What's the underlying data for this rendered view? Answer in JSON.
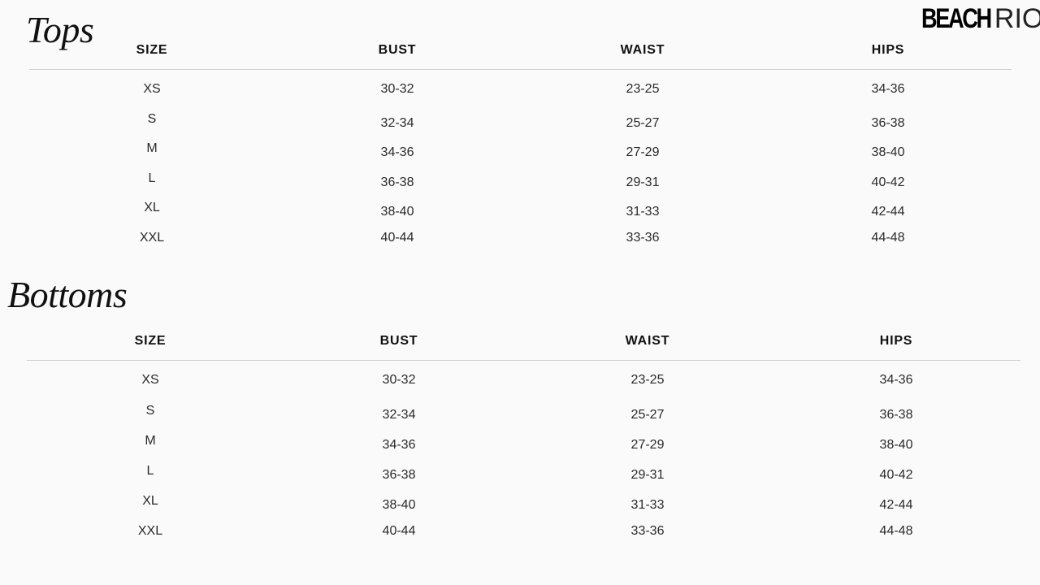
{
  "brand": {
    "logo_bold": "BEACH",
    "logo_light": "RIOT"
  },
  "tops": {
    "title": "Tops",
    "headers": [
      "SIZE",
      "BUST",
      "WAIST",
      "HIPS"
    ],
    "rows": [
      [
        "XS",
        "30-32",
        "23-25",
        "34-36"
      ],
      [
        "S",
        "32-34",
        "25-27",
        "36-38"
      ],
      [
        "M",
        "34-36",
        "27-29",
        "38-40"
      ],
      [
        "L",
        "36-38",
        "29-31",
        "40-42"
      ],
      [
        "XL",
        "38-40",
        "31-33",
        "42-44"
      ],
      [
        "XXL",
        "40-44",
        "33-36",
        "44-48"
      ]
    ]
  },
  "bottoms": {
    "title": "Bottoms",
    "headers": [
      "SIZE",
      "BUST",
      "WAIST",
      "HIPS"
    ],
    "rows": [
      [
        "XS",
        "30-32",
        "23-25",
        "34-36"
      ],
      [
        "S",
        "32-34",
        "25-27",
        "36-38"
      ],
      [
        "M",
        "34-36",
        "27-29",
        "38-40"
      ],
      [
        "L",
        "36-38",
        "29-31",
        "40-42"
      ],
      [
        "XL",
        "38-40",
        "31-33",
        "42-44"
      ],
      [
        "XXL",
        "40-44",
        "33-36",
        "44-48"
      ]
    ]
  }
}
